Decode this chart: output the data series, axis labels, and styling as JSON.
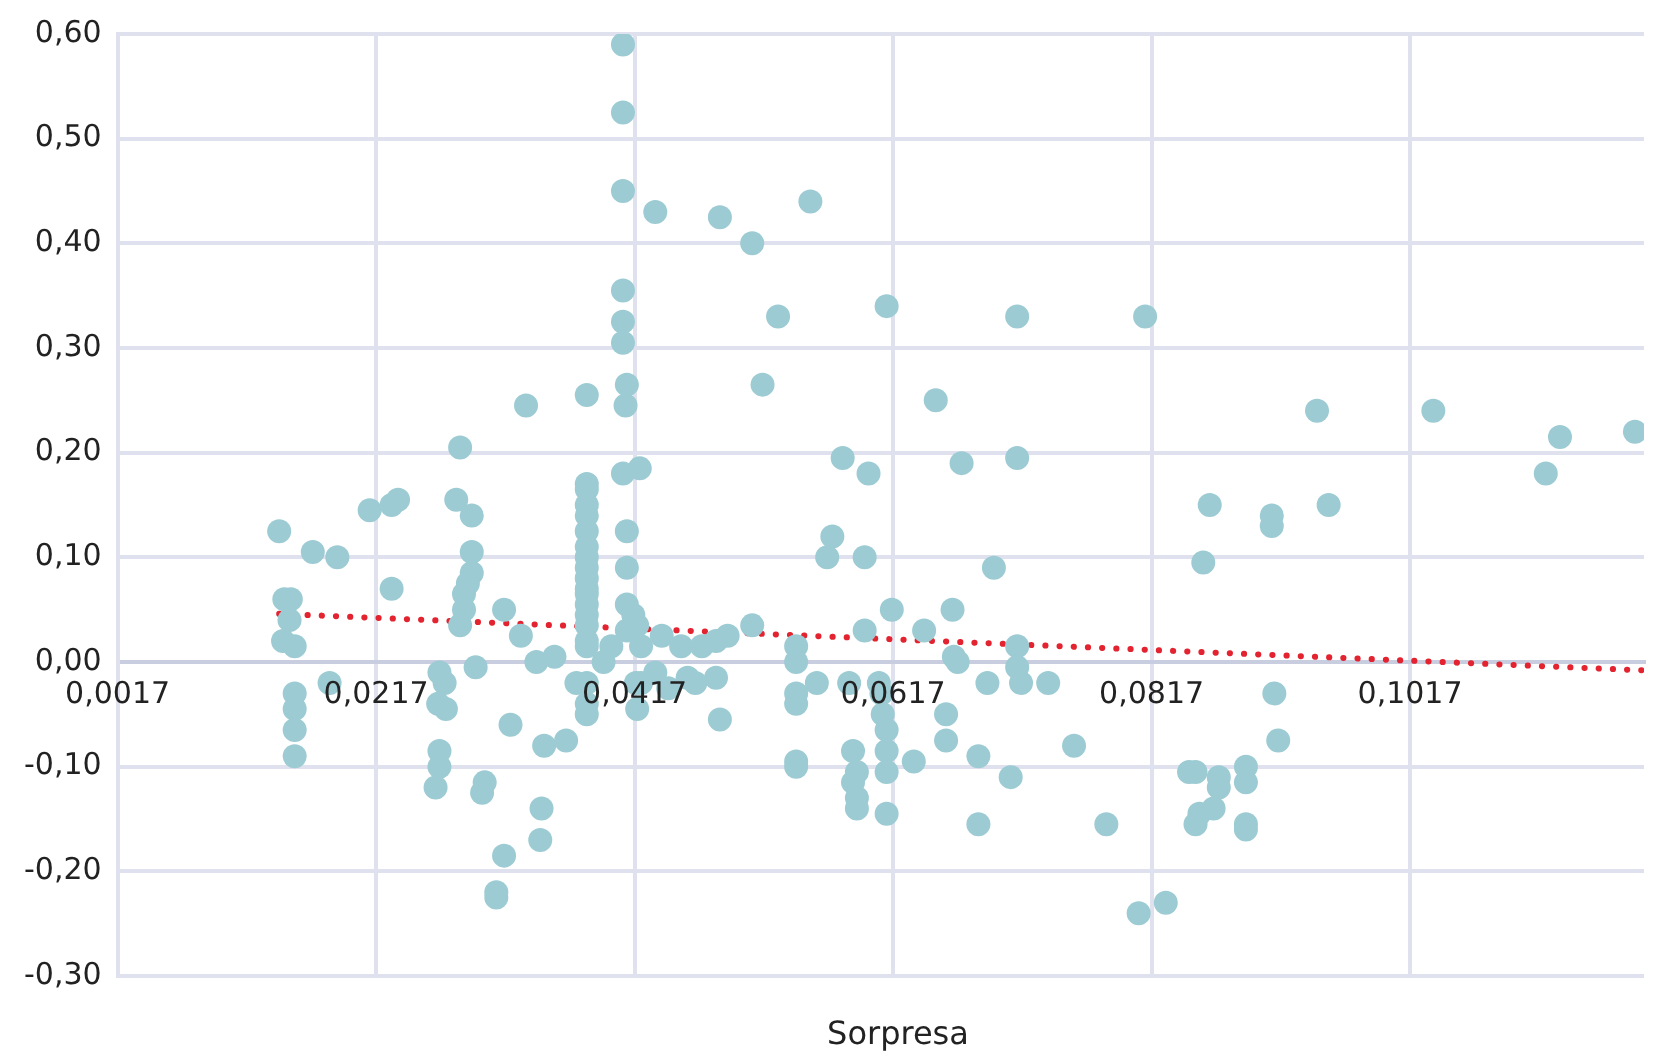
{
  "chart_data": {
    "type": "scatter",
    "xlabel": "Sorpresa",
    "xlim": [
      0.0017,
      0.1198
    ],
    "xticks": [
      {
        "value": 0.0017,
        "label": "0,0017"
      },
      {
        "value": 0.0217,
        "label": "0,0217"
      },
      {
        "value": 0.0417,
        "label": "0,0417"
      },
      {
        "value": 0.0617,
        "label": "0,0617"
      },
      {
        "value": 0.0817,
        "label": "0,0817"
      },
      {
        "value": 0.1017,
        "label": "0,1017"
      }
    ],
    "ylim": [
      -0.3,
      0.6
    ],
    "yticks": [
      {
        "value": -0.3,
        "label": "-0,30"
      },
      {
        "value": -0.2,
        "label": "-0,20"
      },
      {
        "value": -0.1,
        "label": "-0,10"
      },
      {
        "value": 0,
        "label": "0,00"
      },
      {
        "value": 0.1,
        "label": "0,10"
      },
      {
        "value": 0.2,
        "label": "0,20"
      },
      {
        "value": 0.3,
        "label": "0,30"
      },
      {
        "value": 0.4,
        "label": "0,40"
      },
      {
        "value": 0.5,
        "label": "0,50"
      },
      {
        "value": 0.6,
        "label": "0,60"
      }
    ],
    "grid": true,
    "legend": false,
    "series": [
      {
        "type": "scatter",
        "color": "#9ccbd3",
        "marker": "circle",
        "x": [
          0.0142,
          0.0146,
          0.0151,
          0.015,
          0.0145,
          0.0154,
          0.0154,
          0.0154,
          0.0154,
          0.0154,
          0.0168,
          0.0181,
          0.0187,
          0.0212,
          0.0229,
          0.0234,
          0.0229,
          0.0266,
          0.027,
          0.0265,
          0.0271,
          0.0266,
          0.0266,
          0.0263,
          0.0282,
          0.0279,
          0.0291,
          0.0291,
          0.0291,
          0.0288,
          0.0285,
          0.0285,
          0.0282,
          0.0294,
          0.0301,
          0.0299,
          0.0316,
          0.031,
          0.031,
          0.0316,
          0.0321,
          0.0329,
          0.0333,
          0.0341,
          0.0344,
          0.0345,
          0.0347,
          0.0355,
          0.0364,
          0.0372,
          0.038,
          0.038,
          0.038,
          0.038,
          0.038,
          0.038,
          0.038,
          0.038,
          0.038,
          0.038,
          0.038,
          0.038,
          0.038,
          0.038,
          0.038,
          0.038,
          0.038,
          0.038,
          0.038,
          0.038,
          0.0399,
          0.0393,
          0.0408,
          0.0408,
          0.0408,
          0.0408,
          0.0408,
          0.0408,
          0.0411,
          0.0411,
          0.0411,
          0.0411,
          0.0411,
          0.041,
          0.0408,
          0.0421,
          0.0416,
          0.0419,
          0.0422,
          0.0418,
          0.0422,
          0.0419,
          0.0433,
          0.0433,
          0.0438,
          0.0443,
          0.0453,
          0.0458,
          0.0464,
          0.0469,
          0.048,
          0.048,
          0.0483,
          0.0483,
          0.0489,
          0.0508,
          0.0508,
          0.0516,
          0.0528,
          0.0553,
          0.0542,
          0.0542,
          0.0542,
          0.0542,
          0.0542,
          0.0542,
          0.0558,
          0.057,
          0.0566,
          0.0578,
          0.0583,
          0.0586,
          0.0586,
          0.0589,
          0.0589,
          0.0589,
          0.0595,
          0.0595,
          0.0598,
          0.0606,
          0.0608,
          0.0609,
          0.0612,
          0.0612,
          0.0612,
          0.0612,
          0.0612,
          0.0616,
          0.0633,
          0.0641,
          0.065,
          0.0658,
          0.0658,
          0.0663,
          0.0664,
          0.0667,
          0.067,
          0.0683,
          0.0683,
          0.069,
          0.0695,
          0.0708,
          0.0713,
          0.0713,
          0.0713,
          0.0713,
          0.0716,
          0.0737,
          0.0757,
          0.0782,
          0.0807,
          0.0812,
          0.0828,
          0.0846,
          0.0851,
          0.0851,
          0.0854,
          0.0857,
          0.0862,
          0.0865,
          0.0869,
          0.0869,
          0.089,
          0.089,
          0.089,
          0.089,
          0.091,
          0.091,
          0.0912,
          0.0915,
          0.0945,
          0.0954,
          0.1035,
          0.1122,
          0.1133,
          0.1191
        ],
        "values": [
          0.125,
          0.06,
          0.06,
          0.04,
          0.02,
          0.015,
          -0.03,
          -0.045,
          -0.065,
          -0.09,
          0.105,
          -0.02,
          0.1,
          0.145,
          0.15,
          0.155,
          0.07,
          -0.01,
          -0.02,
          -0.04,
          -0.045,
          -0.085,
          -0.1,
          -0.12,
          0.205,
          0.155,
          0.14,
          0.105,
          0.085,
          0.075,
          0.065,
          0.05,
          0.035,
          -0.005,
          -0.115,
          -0.125,
          -0.185,
          -0.22,
          -0.225,
          0.05,
          -0.06,
          0.025,
          0.245,
          0,
          -0.17,
          -0.14,
          -0.08,
          0.005,
          -0.075,
          -0.02,
          0.255,
          0.17,
          0.165,
          0.15,
          0.14,
          0.125,
          0.11,
          0.1,
          0.09,
          0.08,
          0.07,
          0.065,
          0.055,
          0.045,
          0.035,
          0.02,
          0.015,
          -0.02,
          -0.04,
          -0.05,
          0.015,
          0,
          0.59,
          0.525,
          0.45,
          0.355,
          0.325,
          0.305,
          0.265,
          0.125,
          0.09,
          0.055,
          0.03,
          0.245,
          0.18,
          0.185,
          0.045,
          0.035,
          0.015,
          -0.02,
          -0.02,
          -0.045,
          0.43,
          -0.01,
          0.025,
          -0.025,
          0.015,
          -0.015,
          -0.02,
          0.015,
          0.02,
          -0.015,
          0.425,
          -0.055,
          0.025,
          0.4,
          0.035,
          0.265,
          0.33,
          0.44,
          0.015,
          0,
          -0.03,
          -0.04,
          -0.095,
          -0.1,
          -0.02,
          0.12,
          0.1,
          0.195,
          -0.02,
          -0.085,
          -0.115,
          -0.105,
          -0.13,
          -0.14,
          0.1,
          0.03,
          0.18,
          -0.02,
          -0.03,
          -0.05,
          0.34,
          -0.065,
          -0.085,
          -0.105,
          -0.145,
          0.05,
          -0.095,
          0.03,
          0.25,
          -0.05,
          -0.075,
          0.05,
          0.005,
          0,
          0.19,
          -0.09,
          -0.155,
          -0.02,
          0.09,
          -0.11,
          0.33,
          0.195,
          0.015,
          -0.005,
          -0.02,
          -0.02,
          -0.08,
          -0.155,
          -0.24,
          0.33,
          -0.23,
          -0.105,
          -0.105,
          -0.155,
          -0.145,
          0.095,
          0.15,
          -0.14,
          -0.11,
          -0.12,
          -0.1,
          -0.115,
          -0.155,
          -0.16,
          0.14,
          0.13,
          -0.03,
          -0.075,
          0.24,
          0.15,
          0.24,
          0.18,
          0.215,
          0.22
        ]
      },
      {
        "type": "line",
        "color": "#e3232f",
        "marker": "none",
        "line_style": "dotted",
        "x": [
          0.0142,
          0.1198
        ],
        "values": [
          0.046,
          -0.008
        ]
      }
    ]
  }
}
